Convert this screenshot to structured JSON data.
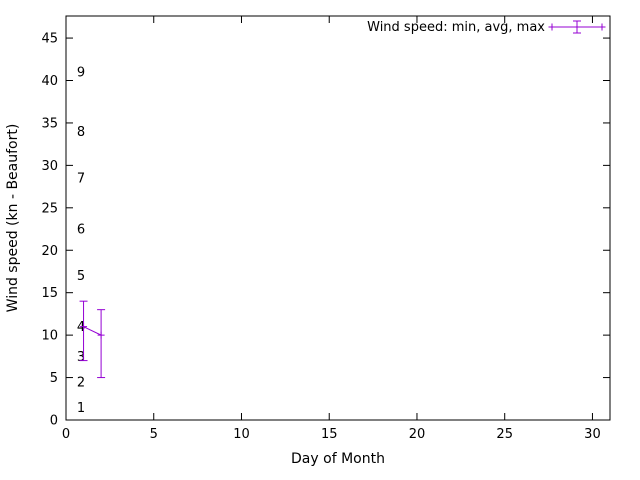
{
  "chart_data": {
    "type": "line",
    "style": "yerrorlines",
    "legend": "Wind speed: min, avg, max",
    "legend_position": "top-right-inside",
    "xlabel": "Day of Month",
    "ylabel": "Wind speed (kn - Beaufort)",
    "xlim": [
      0,
      31
    ],
    "ylim": [
      0,
      47.6
    ],
    "x_ticks": [
      0,
      5,
      10,
      15,
      20,
      25,
      30
    ],
    "y_ticks": [
      0,
      5,
      10,
      15,
      20,
      25,
      30,
      35,
      40,
      45
    ],
    "grid": false,
    "series_color": "#9400D3",
    "axis_color": "#000000",
    "beaufort_scale_labels": [
      {
        "label": "1",
        "kn": 1.5
      },
      {
        "label": "2",
        "kn": 4.5
      },
      {
        "label": "3",
        "kn": 7.5
      },
      {
        "label": "4",
        "kn": 11
      },
      {
        "label": "5",
        "kn": 17
      },
      {
        "label": "6",
        "kn": 22.5
      },
      {
        "label": "7",
        "kn": 28.5
      },
      {
        "label": "8",
        "kn": 34
      },
      {
        "label": "9",
        "kn": 41
      }
    ],
    "points": [
      {
        "day": 1,
        "min": 7,
        "avg": 11,
        "max": 14
      },
      {
        "day": 2,
        "min": 5,
        "avg": 10,
        "max": 13
      }
    ]
  }
}
